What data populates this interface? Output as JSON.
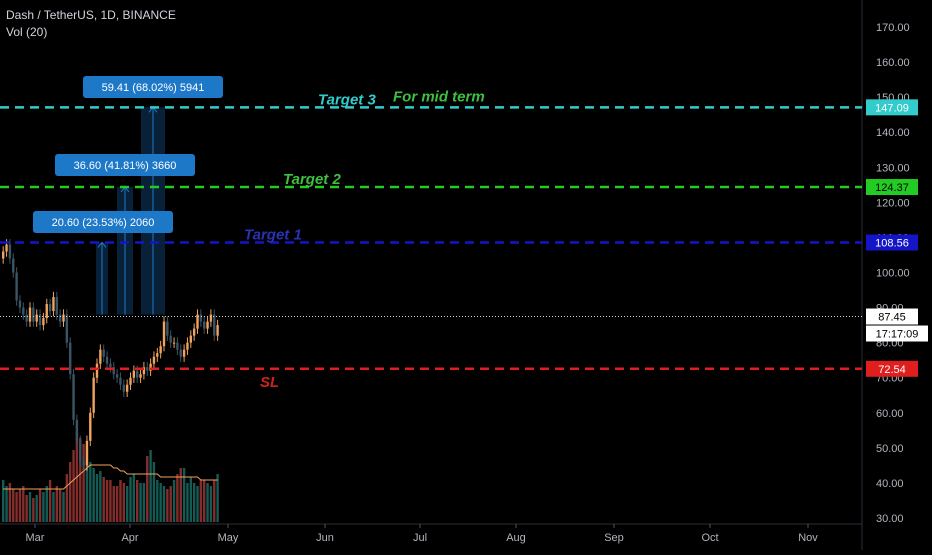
{
  "header": {
    "title": "Dash / TetherUS, 1D, BINANCE",
    "indicator": "Vol (20)"
  },
  "colors": {
    "background": "#000000",
    "up": "#f0a35e",
    "down": "#1f3a4a",
    "vol_up": "#26a69a",
    "vol_down": "#ef5350",
    "vol_ma": "#f0a35e",
    "target1": "#1515c8",
    "target2": "#22cc22",
    "target3": "#33cccc",
    "sl": "#e01e1e",
    "measure": "#1e78c8",
    "axis_text": "#b2b5be"
  },
  "chart_data": {
    "type": "candlestick",
    "y_axis": {
      "range": [
        28,
        178
      ],
      "ticks": [
        "30.00",
        "40.00",
        "50.00",
        "60.00",
        "70.00",
        "80.00",
        "90.00",
        "100.00",
        "110.00",
        "120.00",
        "130.00",
        "140.00",
        "150.00",
        "160.00",
        "170.00"
      ]
    },
    "x_axis": {
      "months": [
        "Mar",
        "Apr",
        "May",
        "Jun",
        "Jul",
        "Aug",
        "Sep",
        "Oct",
        "Nov"
      ]
    },
    "levels": [
      {
        "id": "target3",
        "price": 147.09,
        "price_label": "147.09",
        "text": "Target 3",
        "extra_text": "For mid term"
      },
      {
        "id": "target2",
        "price": 124.37,
        "price_label": "124.37",
        "text": "Target 2"
      },
      {
        "id": "target1",
        "price": 108.56,
        "price_label": "108.56",
        "text": "Target 1"
      },
      {
        "id": "sl",
        "price": 72.54,
        "price_label": "72.54",
        "text": "SL"
      }
    ],
    "current_price": {
      "value": 87.45,
      "label": "87.45",
      "countdown": "17:17:09"
    },
    "measurements": [
      {
        "from": 88,
        "to": 108.56,
        "label": "20.60 (23.53%) 2060"
      },
      {
        "from": 88,
        "to": 124.37,
        "label": "36.60 (41.81%) 3660"
      },
      {
        "from": 88,
        "to": 147.09,
        "label": "59.41 (68.02%) 5941"
      }
    ],
    "candles_close": [
      106,
      108,
      104,
      100,
      92,
      90,
      88,
      86,
      90,
      86,
      88,
      85,
      87,
      91,
      89,
      93,
      88,
      86,
      88,
      80,
      71,
      58,
      52,
      46,
      45,
      52,
      60,
      70,
      74,
      78,
      76,
      74,
      73,
      71,
      70,
      68,
      66,
      68,
      70,
      72,
      70,
      71,
      73,
      72,
      74,
      76,
      77,
      79,
      86,
      82,
      80,
      80,
      78,
      76,
      78,
      80,
      82,
      84,
      88,
      86,
      84,
      86,
      88,
      82,
      85
    ],
    "volume": [
      14,
      12,
      13,
      11,
      10,
      11,
      12,
      9,
      10,
      8,
      9,
      11,
      10,
      12,
      14,
      10,
      12,
      11,
      10,
      16,
      20,
      24,
      30,
      28,
      26,
      25,
      20,
      18,
      16,
      17,
      15,
      14,
      14,
      12,
      12,
      14,
      13,
      12,
      15,
      16,
      14,
      13,
      13,
      22,
      24,
      20,
      14,
      13,
      12,
      11,
      12,
      14,
      16,
      18,
      18,
      13,
      15,
      13,
      12,
      14,
      14,
      13,
      12,
      14,
      16
    ],
    "volume_ma": [
      11,
      11,
      11,
      11,
      11,
      11,
      11,
      11,
      11,
      11,
      11,
      11,
      11,
      11,
      11,
      11,
      11,
      11,
      11,
      12,
      13,
      14,
      15,
      16,
      17,
      18,
      19,
      19,
      19,
      19,
      19,
      19,
      19,
      18,
      18,
      17,
      17,
      16,
      16,
      16,
      16,
      16,
      16,
      16,
      16,
      16,
      16,
      15,
      15,
      15,
      15,
      15,
      15,
      15,
      15,
      15,
      15,
      15,
      15,
      14,
      14,
      14,
      14,
      14,
      14
    ]
  }
}
